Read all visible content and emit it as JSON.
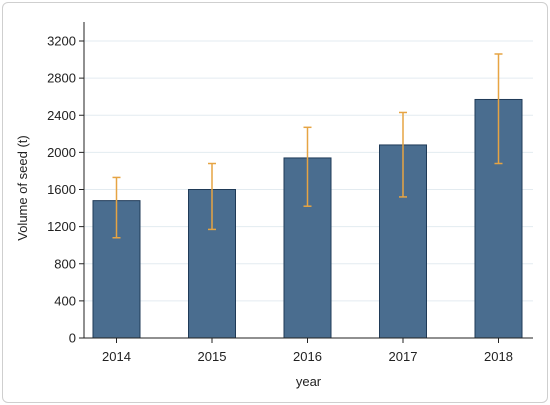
{
  "chart_data": {
    "type": "bar",
    "categories": [
      "2014",
      "2015",
      "2016",
      "2017",
      "2018"
    ],
    "values": [
      1480,
      1600,
      1940,
      2080,
      2570
    ],
    "error_bars": [
      {
        "low": 1080,
        "high": 1730
      },
      {
        "low": 1170,
        "high": 1880
      },
      {
        "low": 1420,
        "high": 2270
      },
      {
        "low": 1520,
        "high": 2430
      },
      {
        "low": 1880,
        "high": 3060
      }
    ],
    "xlabel": "year",
    "ylabel": "Volume of seed (t)",
    "ylim": [
      0,
      3200
    ],
    "yticks": [
      0,
      400,
      800,
      1200,
      1600,
      2000,
      2400,
      2800,
      3200
    ],
    "grid": true,
    "bar_color": "#4a6d8f",
    "bar_edge_color": "#1f3a57",
    "error_color": "#e6a443",
    "grid_color": "#e3ebf0"
  }
}
